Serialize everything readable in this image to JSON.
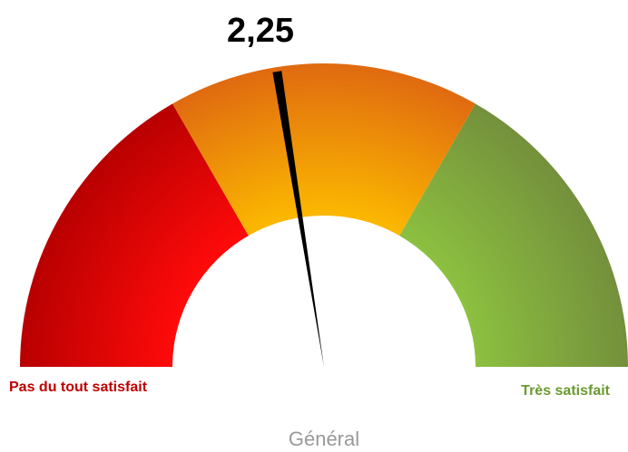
{
  "chart_data": {
    "type": "gauge",
    "value": 2.25,
    "value_label": "2,25",
    "range": [
      0,
      5
    ],
    "bands": [
      {
        "from": 0,
        "to": 1.67,
        "color": "#ee0000"
      },
      {
        "from": 1.67,
        "to": 3.33,
        "color": "#f0a000"
      },
      {
        "from": 3.33,
        "to": 5,
        "color": "#80a840"
      }
    ],
    "min_label": "Pas du tout satisfait",
    "max_label": "Très satisfait",
    "title": "Général"
  }
}
